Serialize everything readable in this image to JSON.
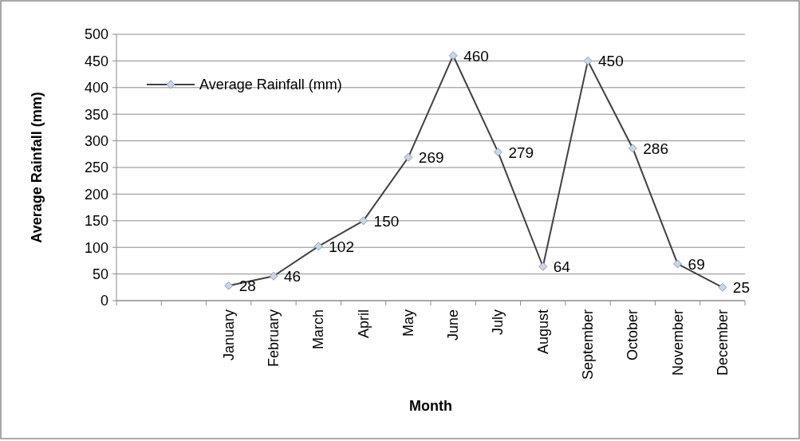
{
  "chart_data": {
    "type": "line",
    "xlabel": "Month",
    "ylabel": "Average Rainfall (mm)",
    "categories": [
      null,
      null,
      "January",
      "February",
      "March",
      "April",
      "May",
      "June",
      "July",
      "August",
      "September",
      "October",
      "November",
      "December"
    ],
    "series": [
      {
        "name": "Average Rainfall (mm)",
        "color": "#404040",
        "values": [
          null,
          null,
          28,
          46,
          102,
          150,
          269,
          460,
          279,
          64,
          450,
          286,
          69,
          25
        ]
      }
    ],
    "ylim": [
      0,
      500
    ],
    "yticks": [
      0,
      50,
      100,
      150,
      200,
      250,
      300,
      350,
      400,
      450,
      500
    ],
    "grid": "y",
    "legend": "top left",
    "marker": "diamond",
    "line_style": "solid",
    "data_labels": true
  }
}
